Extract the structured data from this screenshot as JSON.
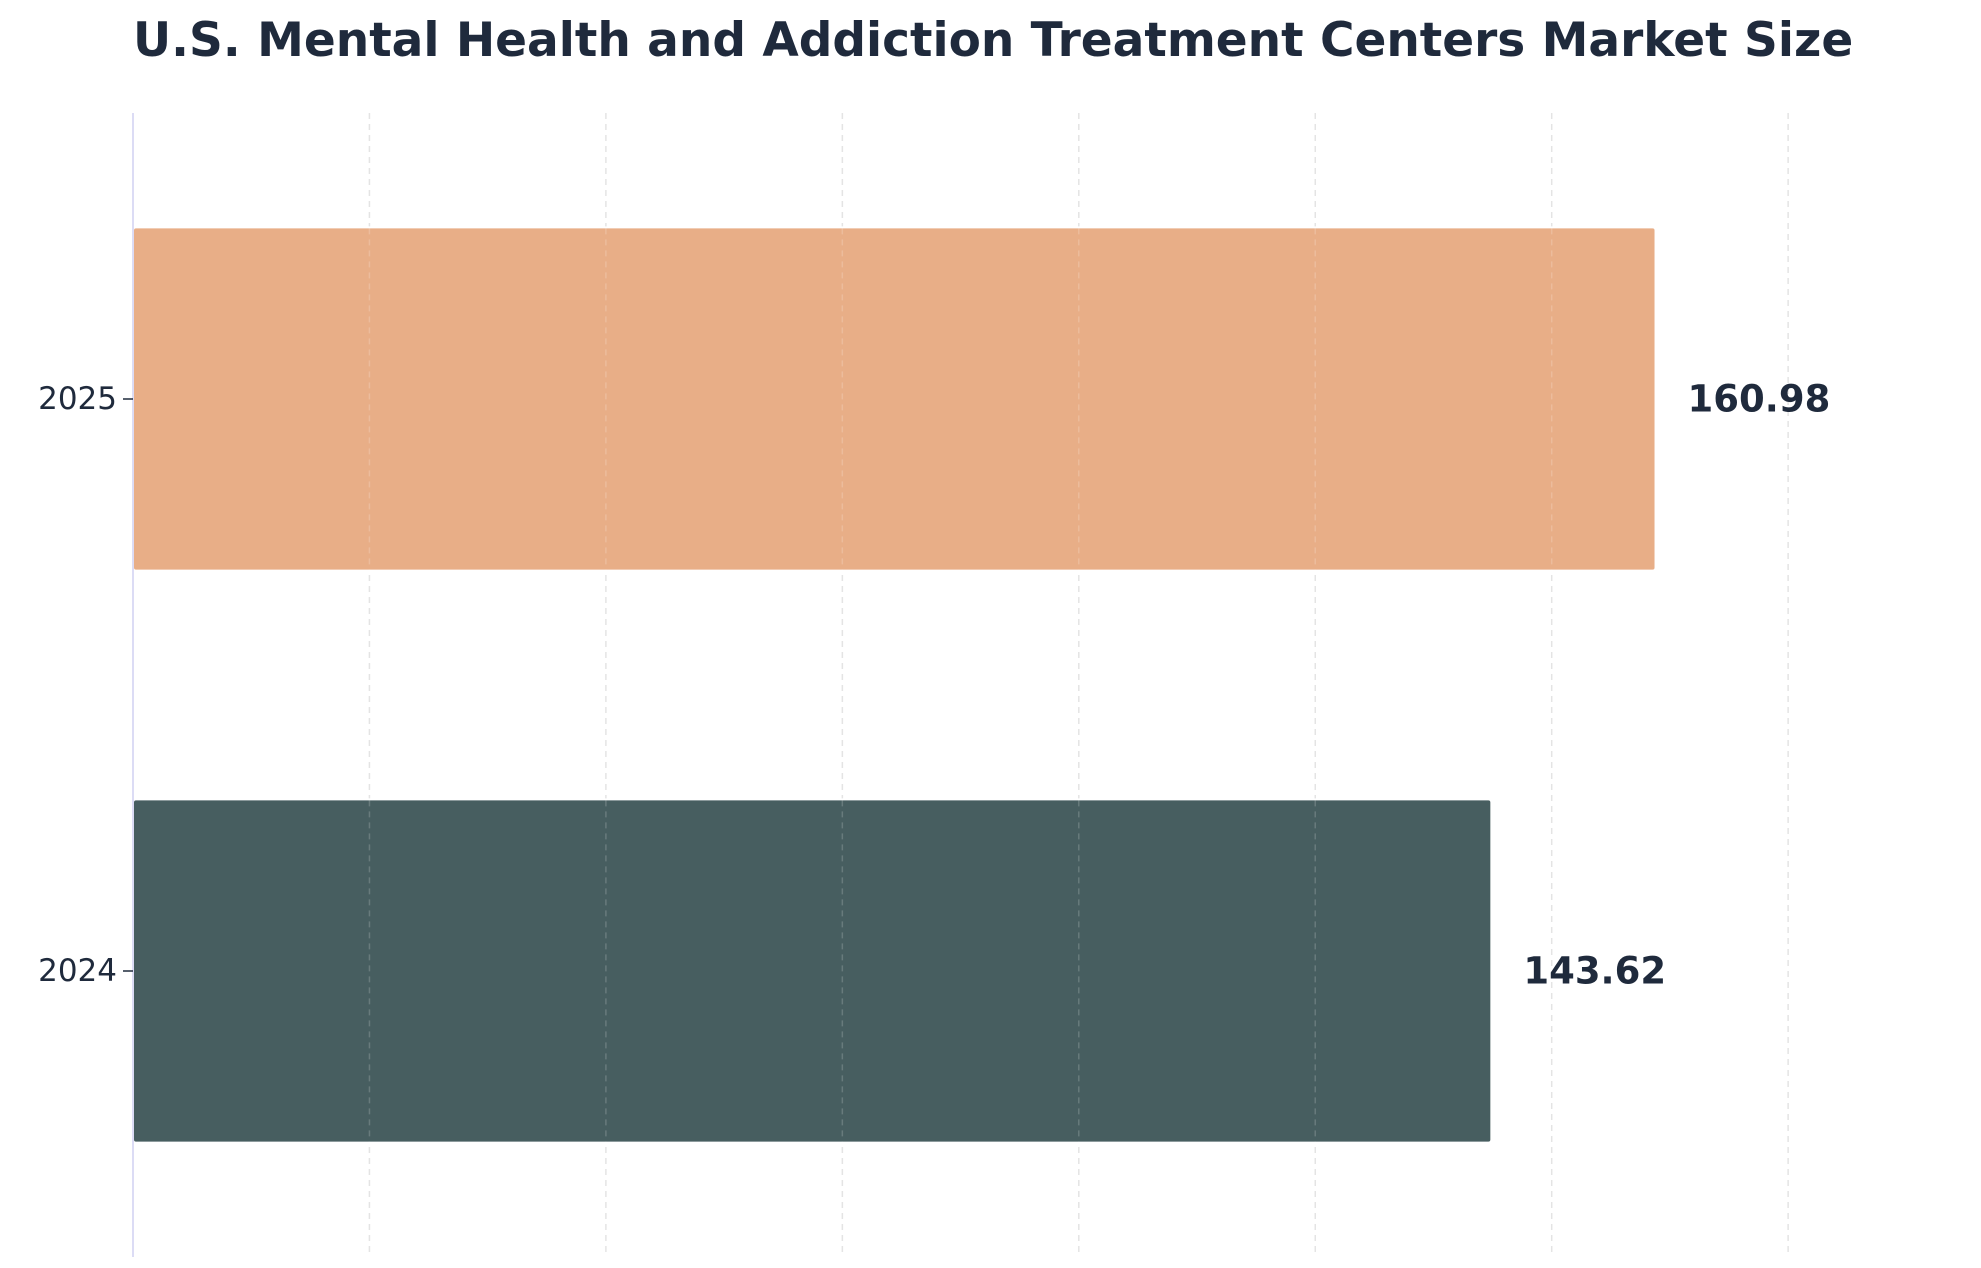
{
  "chart_data": {
    "type": "bar",
    "orientation": "horizontal",
    "title": "U.S. Mental Health and Addiction Treatment Centers Market Size",
    "xlabel": "",
    "ylabel": "",
    "categories": [
      "2025",
      "2024"
    ],
    "values": [
      160.98,
      143.62
    ],
    "value_labels": [
      "160.98",
      "143.62"
    ],
    "bar_colors": [
      "#e8ae87",
      "#475e60"
    ],
    "xlim": [
      0,
      190
    ],
    "grid": true,
    "grid_style": "dashed vertical",
    "legend": "none"
  },
  "colors": {
    "title": "#1f2a3c",
    "axis_spine": "#dcdcf5",
    "grid": "#cfcfcf"
  }
}
